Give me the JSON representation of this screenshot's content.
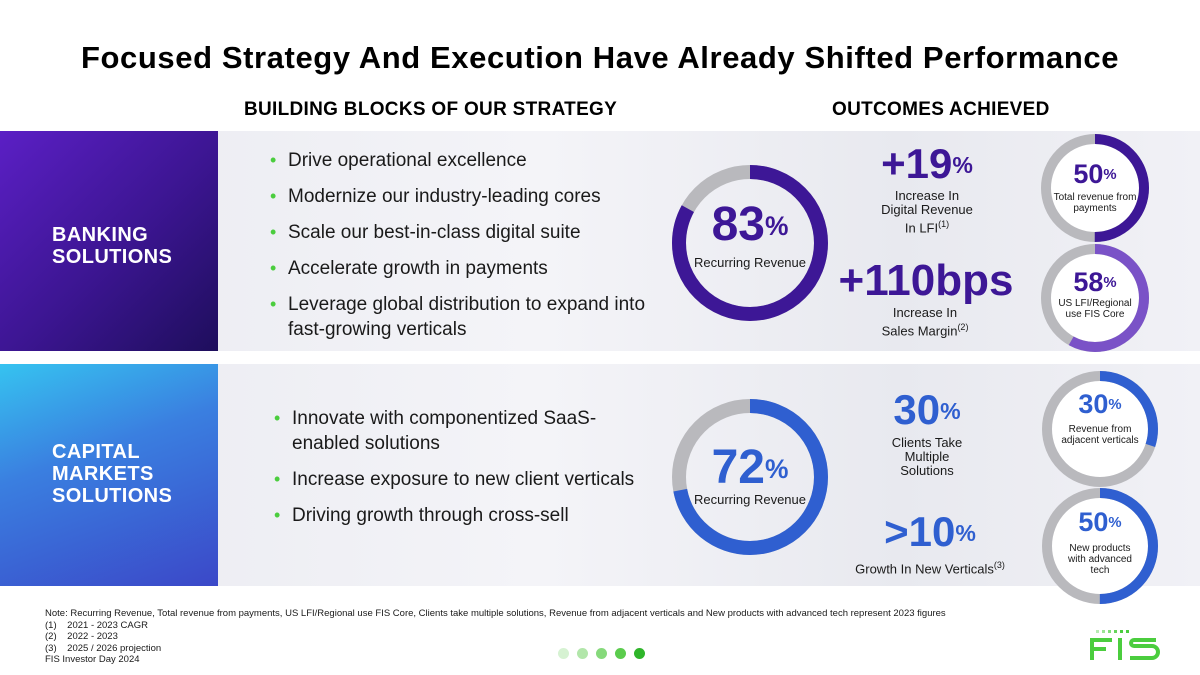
{
  "title": "Focused Strategy And Execution Have Already Shifted Performance",
  "headers": {
    "left": "BUILDING BLOCKS OF OUR STRATEGY",
    "right": "OUTCOMES ACHIEVED"
  },
  "banking": {
    "label": "BANKING\nSOLUTIONS",
    "bullets": [
      "Drive operational excellence",
      "Modernize our industry-leading cores",
      "Scale our best-in-class digital suite",
      "Accelerate growth in payments",
      "Leverage global distribution to expand into fast-growing verticals"
    ],
    "donut": {
      "value": 83,
      "number": "83",
      "pct": "%",
      "label": "Recurring Revenue",
      "color": "#3d1796"
    },
    "metric1": {
      "number": "+19",
      "pct": "%",
      "label1": "Increase In",
      "label2": "Digital Revenue",
      "label3": "In LFI",
      "sup": "(1)"
    },
    "metric2": {
      "number": "+110bps",
      "label1": "Increase In",
      "label2": "Sales Margin",
      "sup": "(2)"
    },
    "ring1": {
      "value": 50,
      "number": "50",
      "pct": "%",
      "label": "Total revenue from payments",
      "color": "#3d1796"
    },
    "ring2": {
      "value": 58,
      "number": "58",
      "pct": "%",
      "label": "US LFI/Regional use FIS Core",
      "color": "#7a52c7"
    }
  },
  "capital": {
    "label": "CAPITAL\nMARKETS\nSOLUTIONS",
    "bullets": [
      "Innovate with componentized SaaS-enabled solutions",
      "Increase exposure to new client verticals",
      "Driving growth through cross-sell"
    ],
    "donut": {
      "value": 72,
      "number": "72",
      "pct": "%",
      "label": "Recurring Revenue",
      "color": "#2f5fd0"
    },
    "metric1": {
      "number": "30",
      "pct": "%",
      "label1": "Clients Take",
      "label2": "Multiple",
      "label3": "Solutions"
    },
    "metric2": {
      "number": ">10",
      "pct": "%",
      "label": "Growth In New Verticals",
      "sup": "(3)"
    },
    "ring1": {
      "value": 30,
      "number": "30",
      "pct": "%",
      "label": "Revenue from adjacent verticals",
      "color": "#2f5fd0"
    },
    "ring2": {
      "value": 50,
      "number": "50",
      "pct": "%",
      "label": "New products with advanced tech",
      "color": "#2f5fd0"
    }
  },
  "notes": [
    "Note: Recurring Revenue, Total revenue from payments, US LFI/Regional use FIS Core, Clients take multiple solutions, Revenue from adjacent verticals and New products with advanced tech represent 2023 figures",
    "(1)    2021 - 2023 CAGR",
    "(2)    2022 - 2023",
    "(3)    2025 / 2026 projection",
    "FIS Investor Day 2024"
  ],
  "logo": "FIS",
  "colors": {
    "bankPurple": "#3d1796",
    "capBlue": "#2f5fd0",
    "ringGrey": "#b9b9bd",
    "fisGreen": "#4bcd3e"
  }
}
